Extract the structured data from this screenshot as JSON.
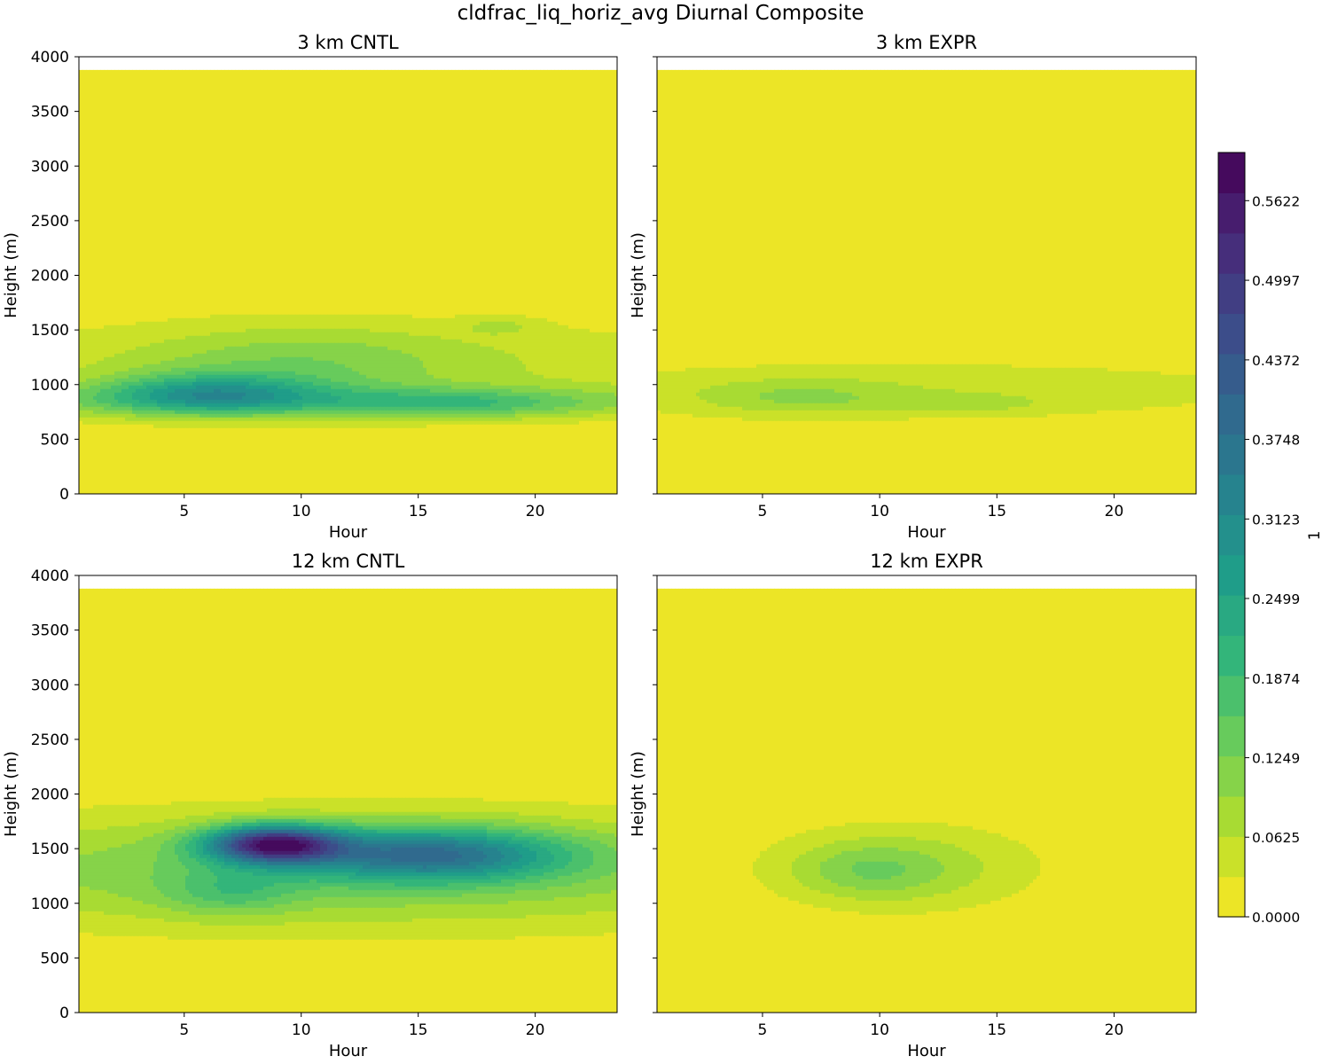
{
  "figure": {
    "title": "cldfrac_liq_horiz_avg Diurnal Composite"
  },
  "colorbar": {
    "label": "1",
    "min": 0.0,
    "max": 0.6,
    "levels": 19,
    "tick_values": [
      0.0,
      0.0625,
      0.1249,
      0.1874,
      0.2499,
      0.3123,
      0.3748,
      0.4372,
      0.4997,
      0.5622
    ],
    "tick_labels": [
      "0.0000",
      "0.0625",
      "0.1249",
      "0.1874",
      "0.2499",
      "0.3123",
      "0.3748",
      "0.4372",
      "0.4997",
      "0.5622"
    ],
    "colormap": [
      "#440154",
      "#482878",
      "#3e4989",
      "#31688e",
      "#26828e",
      "#1f9e89",
      "#35b779",
      "#6ece58",
      "#b5de2b",
      "#fde725"
    ]
  },
  "chart_data": [
    {
      "type": "contourf",
      "title": "3 km CNTL",
      "xlabel": "Hour",
      "ylabel": "Height (m)",
      "xlim": [
        0.5,
        23.5
      ],
      "ylim": [
        0,
        4000
      ],
      "xticks": [
        5,
        10,
        15,
        20
      ],
      "yticks": [
        0,
        500,
        1000,
        1500,
        2000,
        2500,
        3000,
        3500,
        4000
      ],
      "data_top": 3880,
      "blobs": [
        {
          "hour": 12,
          "height": 1200,
          "sigma_h": 14,
          "sigma_z": 300,
          "value": 0.065
        },
        {
          "hour": 10,
          "height": 1180,
          "sigma_h": 4.5,
          "sigma_z": 260,
          "value": 0.06
        },
        {
          "hour": 6,
          "height": 920,
          "sigma_h": 3.2,
          "sigma_z": 130,
          "value": 0.19
        },
        {
          "hour": 16.5,
          "height": 820,
          "sigma_h": 3.5,
          "sigma_z": 90,
          "value": 0.08
        },
        {
          "hour": 12,
          "height": 840,
          "sigma_h": 14,
          "sigma_z": 110,
          "value": 0.1
        },
        {
          "hour": 18.5,
          "height": 1540,
          "sigma_h": 1.2,
          "sigma_z": 60,
          "value": 0.04
        }
      ]
    },
    {
      "type": "contourf",
      "title": "3 km EXPR",
      "xlabel": "Hour",
      "ylabel": "Height (m)",
      "xlim": [
        0.5,
        23.5
      ],
      "ylim": [
        0,
        4000
      ],
      "xticks": [
        5,
        10,
        15,
        20
      ],
      "yticks": [
        0,
        500,
        1000,
        1500,
        2000,
        2500,
        3000,
        3500,
        4000
      ],
      "data_top": 3880,
      "blobs": [
        {
          "hour": 11,
          "height": 950,
          "sigma_h": 14,
          "sigma_z": 220,
          "value": 0.055
        },
        {
          "hour": 6.5,
          "height": 880,
          "sigma_h": 3,
          "sigma_z": 110,
          "value": 0.055
        },
        {
          "hour": 13.5,
          "height": 820,
          "sigma_h": 2.5,
          "sigma_z": 60,
          "value": 0.04
        }
      ]
    },
    {
      "type": "contourf",
      "title": "12 km CNTL",
      "xlabel": "Hour",
      "ylabel": "Height (m)",
      "xlim": [
        0.5,
        23.5
      ],
      "ylim": [
        0,
        4000
      ],
      "xticks": [
        5,
        10,
        15,
        20
      ],
      "yticks": [
        0,
        500,
        1000,
        1500,
        2000,
        2500,
        3000,
        3500,
        4000
      ],
      "data_top": 3880,
      "blobs": [
        {
          "hour": 12,
          "height": 1300,
          "sigma_h": 16,
          "sigma_z": 380,
          "value": 0.13
        },
        {
          "hour": 8.8,
          "height": 1540,
          "sigma_h": 2,
          "sigma_z": 120,
          "value": 0.45
        },
        {
          "hour": 15.5,
          "height": 1450,
          "sigma_h": 4,
          "sigma_z": 170,
          "value": 0.28
        },
        {
          "hour": 7,
          "height": 1100,
          "sigma_h": 2,
          "sigma_z": 150,
          "value": 0.08
        }
      ]
    },
    {
      "type": "contourf",
      "title": "12 km EXPR",
      "xlabel": "Hour",
      "ylabel": "Height (m)",
      "xlim": [
        0.5,
        23.5
      ],
      "ylim": [
        0,
        4000
      ],
      "xticks": [
        5,
        10,
        15,
        20
      ],
      "yticks": [
        0,
        500,
        1000,
        1500,
        2000,
        2500,
        3000,
        3500,
        4000
      ],
      "data_top": 3880,
      "blobs": [
        {
          "hour": 11,
          "height": 1330,
          "sigma_h": 4.3,
          "sigma_z": 300,
          "value": 0.08
        },
        {
          "hour": 9.5,
          "height": 1300,
          "sigma_h": 2.2,
          "sigma_z": 170,
          "value": 0.06
        }
      ]
    }
  ]
}
